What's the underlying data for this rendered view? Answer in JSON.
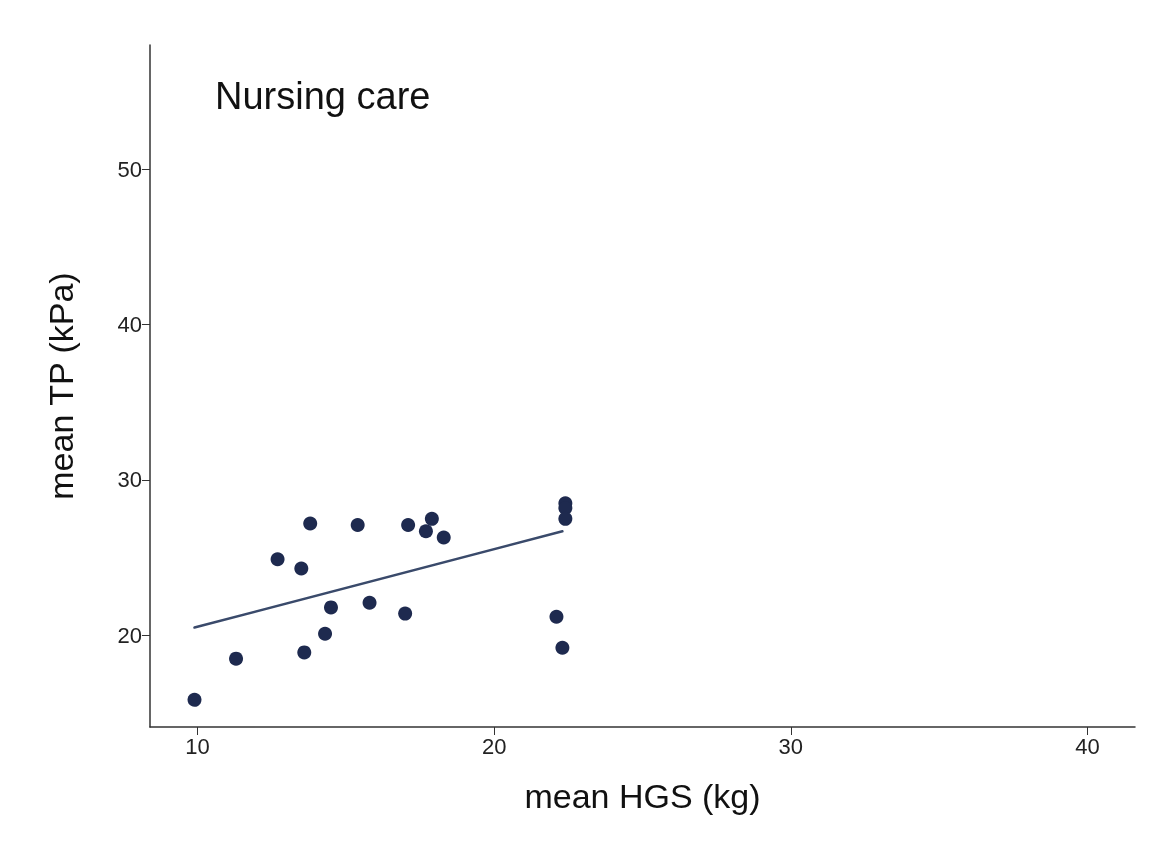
{
  "chart_data": {
    "type": "scatter",
    "title": "Nursing care",
    "xlabel": "mean HGS (kg)",
    "ylabel": "mean TP (kPa)",
    "xlim": [
      8.4,
      41.6
    ],
    "xticks": [
      10,
      20,
      30,
      40
    ],
    "ylim": [
      14.1,
      58
    ],
    "yticks": [
      20,
      30,
      40,
      50
    ],
    "grid": false,
    "marker": "circle",
    "series": [
      {
        "color": "#1e2a4f",
        "x": [
          9.9,
          11.3,
          12.7,
          13.5,
          13.6,
          13.8,
          14.3,
          14.5,
          15.4,
          15.8,
          17.0,
          17.1,
          17.7,
          17.9,
          18.3,
          22.1,
          22.3,
          22.4,
          22.4,
          22.4
        ],
        "values": [
          15.85,
          18.5,
          24.9,
          24.3,
          18.9,
          27.2,
          20.1,
          21.8,
          27.1,
          22.1,
          21.4,
          27.1,
          26.7,
          27.5,
          26.3,
          21.2,
          19.2,
          28.5,
          28.2,
          27.5
        ]
      },
      {
        "type": "line",
        "color": "#3a4a6b",
        "marker": "none",
        "x": [
          9.9,
          22.3
        ],
        "values": [
          20.5,
          26.7
        ]
      }
    ]
  }
}
